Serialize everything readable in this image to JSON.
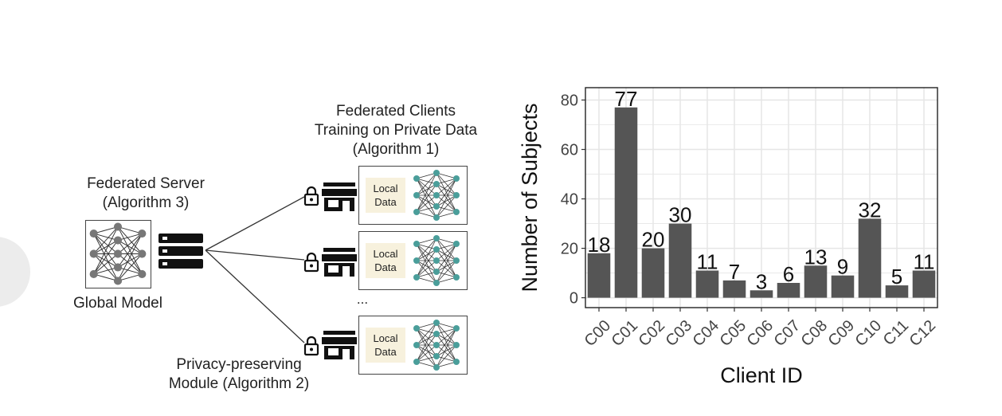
{
  "diagram": {
    "server_label": [
      "Federated Server",
      "(Algorithm 3)"
    ],
    "global_model_label": "Global Model",
    "clients_label": [
      "Federated Clients",
      "Training on Private Data",
      "(Algorithm 1)"
    ],
    "client_local_data": [
      "Local",
      "Data"
    ],
    "ellipsis": "...",
    "privacy_label": [
      "Privacy-preserving",
      "Module (Algorithm 2)"
    ],
    "icons": [
      "neural-network-icon",
      "server-icon",
      "lock-icon",
      "store-icon"
    ],
    "colors": {
      "node_teal": "#4a9e9a",
      "local_data_bg": "#f7f1dd"
    }
  },
  "chart_data": {
    "type": "bar",
    "xlabel": "Client ID",
    "ylabel": "Number of Subjects",
    "categories": [
      "C00",
      "C01",
      "C02",
      "C03",
      "C04",
      "C05",
      "C06",
      "C07",
      "C08",
      "C09",
      "C10",
      "C11",
      "C12"
    ],
    "values": [
      18,
      77,
      20,
      30,
      11,
      7,
      3,
      6,
      13,
      9,
      32,
      5,
      11
    ],
    "ylim": [
      -4,
      85
    ],
    "yticks": [
      0,
      20,
      40,
      60,
      80
    ],
    "grid": true,
    "bar_color": "#555555",
    "panel_bg": "#ffffff",
    "grid_color": "#e6e6e6"
  }
}
